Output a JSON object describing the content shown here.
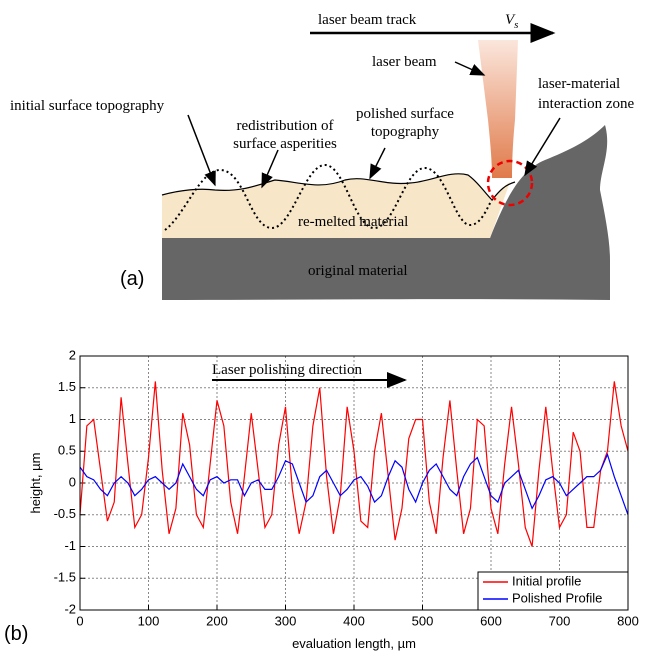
{
  "panel_a": {
    "label": "(a)",
    "track": "laser beam track",
    "velocity": "V",
    "velocity_sub": "s",
    "laser_beam": "laser beam",
    "initial": "initial surface topography",
    "interaction_zone": [
      "laser-material",
      "interaction zone"
    ],
    "redistribution": [
      "redistribution of",
      "surface asperities"
    ],
    "polished": [
      "polished surface",
      "topography"
    ],
    "remelted": "re-melted material",
    "original": "original material"
  },
  "panel_b_label": "(b)",
  "chart_data": {
    "type": "line",
    "xlabel": "evaluation length, µm",
    "ylabel": "height, µm",
    "annotation": "Laser polishing direction",
    "x": [
      0,
      10,
      20,
      30,
      40,
      50,
      60,
      70,
      80,
      90,
      100,
      110,
      120,
      130,
      140,
      150,
      160,
      170,
      180,
      190,
      200,
      210,
      220,
      230,
      240,
      250,
      260,
      270,
      280,
      290,
      300,
      310,
      320,
      330,
      340,
      350,
      360,
      370,
      380,
      390,
      400,
      410,
      420,
      430,
      440,
      450,
      460,
      470,
      480,
      490,
      500,
      510,
      520,
      530,
      540,
      550,
      560,
      570,
      580,
      590,
      600,
      610,
      620,
      630,
      640,
      650,
      660,
      670,
      680,
      690,
      700,
      710,
      720,
      730,
      740,
      750,
      760,
      770,
      780,
      790,
      800
    ],
    "series": [
      {
        "name": "Initial profile",
        "color": "#ff0000",
        "values": [
          -0.5,
          0.9,
          1.0,
          0.2,
          -0.6,
          -0.3,
          1.35,
          0.3,
          -0.7,
          -0.5,
          0.4,
          1.6,
          0.2,
          -0.8,
          -0.4,
          1.1,
          0.6,
          -0.5,
          -0.7,
          0.3,
          1.3,
          0.9,
          -0.3,
          -0.8,
          0.1,
          1.1,
          0.2,
          -0.7,
          -0.5,
          0.6,
          1.2,
          -0.1,
          -0.8,
          -0.3,
          0.9,
          1.5,
          0.1,
          -0.8,
          -0.2,
          1.2,
          0.5,
          -0.6,
          -0.7,
          0.5,
          1.1,
          0.1,
          -0.9,
          -0.4,
          0.7,
          1.0,
          1.0,
          -0.3,
          -0.8,
          0.4,
          1.3,
          0.2,
          -0.8,
          -0.4,
          1.0,
          0.9,
          -0.4,
          -0.8,
          0.3,
          1.2,
          0.3,
          -0.7,
          -1.0,
          0.2,
          1.2,
          0.2,
          -0.7,
          -0.5,
          0.8,
          0.5,
          -0.7,
          -0.7,
          0.2,
          0.5,
          1.6,
          0.9,
          0.5
        ]
      },
      {
        "name": "Polished Profile",
        "color": "#0000ff",
        "values": [
          0.25,
          0.1,
          0.05,
          -0.1,
          -0.2,
          0.0,
          0.1,
          0.0,
          -0.2,
          -0.1,
          0.05,
          0.1,
          0.0,
          -0.1,
          0.0,
          0.3,
          0.1,
          -0.1,
          -0.2,
          0.05,
          0.1,
          0.0,
          0.05,
          0.05,
          -0.2,
          0.0,
          0.05,
          -0.1,
          -0.1,
          0.1,
          0.35,
          0.3,
          0.0,
          -0.3,
          -0.2,
          0.1,
          0.2,
          0.0,
          -0.2,
          -0.1,
          0.05,
          0.1,
          -0.05,
          -0.3,
          -0.2,
          0.1,
          0.35,
          0.25,
          -0.1,
          -0.3,
          0.0,
          0.2,
          0.3,
          0.1,
          -0.1,
          -0.2,
          0.1,
          0.3,
          0.4,
          0.1,
          -0.2,
          -0.3,
          0.0,
          0.1,
          0.2,
          -0.1,
          -0.4,
          -0.2,
          0.05,
          0.1,
          0.0,
          -0.2,
          -0.1,
          0.0,
          0.1,
          0.1,
          0.2,
          0.45,
          0.1,
          -0.2,
          -0.5
        ]
      }
    ],
    "xlim": [
      0,
      800
    ],
    "ylim": [
      -2,
      2
    ],
    "xticks": [
      0,
      100,
      200,
      300,
      400,
      500,
      600,
      700,
      800
    ],
    "yticks": [
      -2,
      -1.5,
      -1,
      -0.5,
      0,
      0.5,
      1,
      1.5,
      2
    ],
    "grid": true,
    "legend": "lower right"
  }
}
